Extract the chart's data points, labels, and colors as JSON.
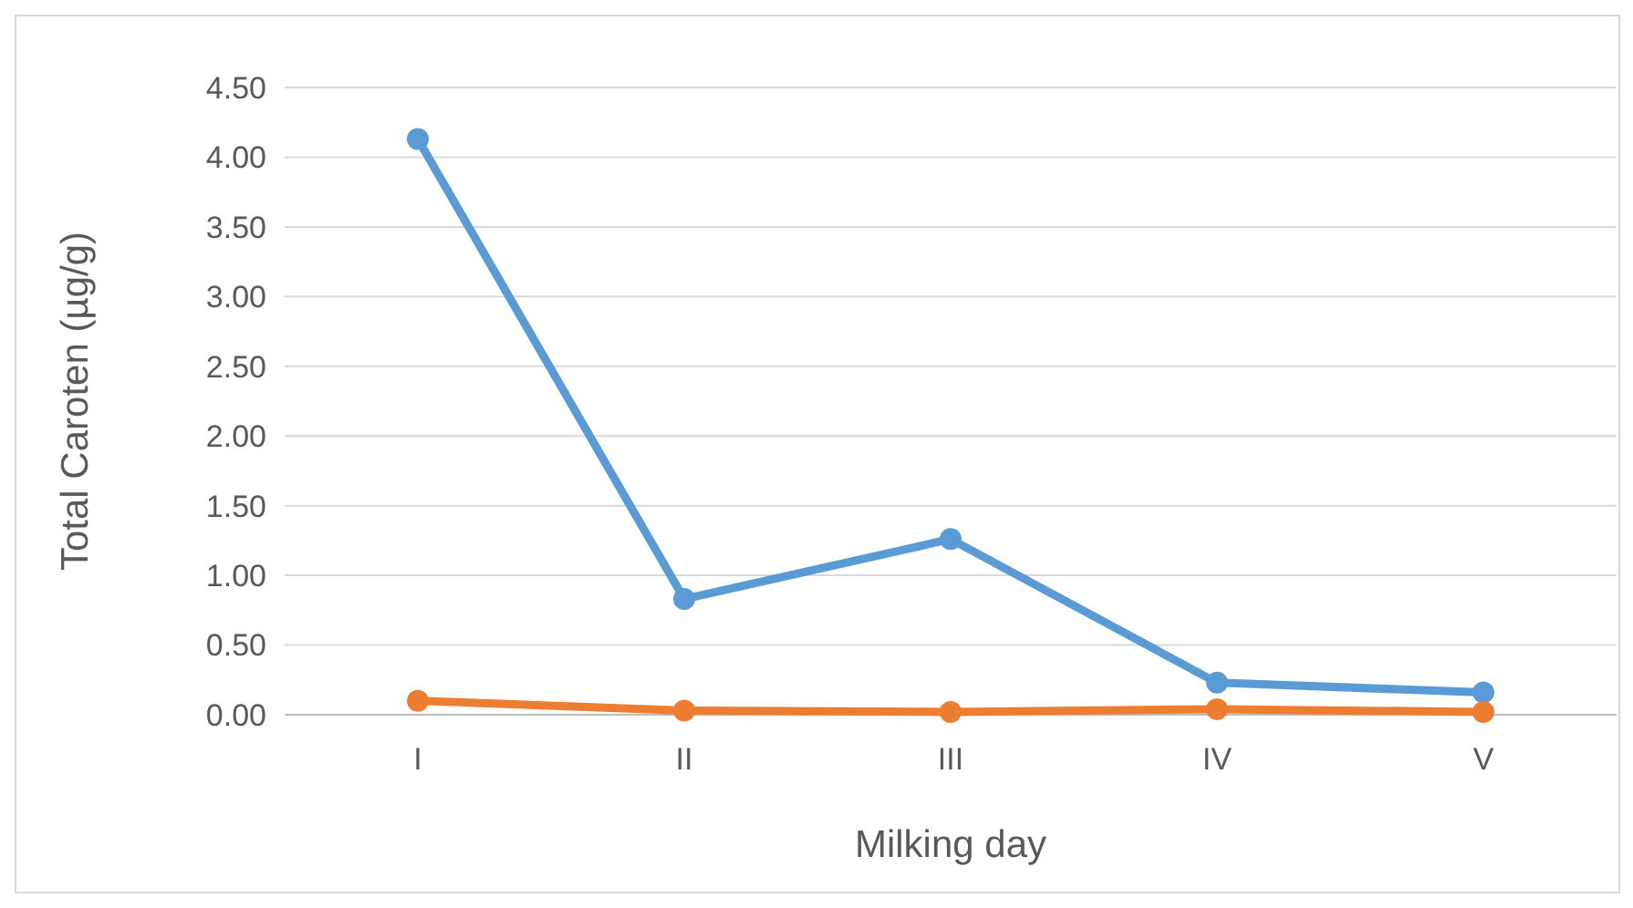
{
  "chart_data": {
    "type": "line",
    "xlabel": "Milking day",
    "ylabel": "Total Caroten (µg/g)",
    "categories": [
      "I",
      "II",
      "III",
      "IV",
      "V"
    ],
    "series": [
      {
        "color": "#5b9bd5",
        "values": [
          4.13,
          0.83,
          1.26,
          0.23,
          0.16
        ]
      },
      {
        "color": "#ed7d31",
        "values": [
          0.1,
          0.03,
          0.02,
          0.04,
          0.02
        ]
      }
    ],
    "ylim": [
      0,
      4.5
    ],
    "yticks": [
      {
        "value": 0,
        "label": "0.00"
      },
      {
        "value": 0.5,
        "label": "0.50"
      },
      {
        "value": 1,
        "label": "1.00"
      },
      {
        "value": 1.5,
        "label": "1.50"
      },
      {
        "value": 2,
        "label": "2.00"
      },
      {
        "value": 2.5,
        "label": "2.50"
      },
      {
        "value": 3,
        "label": "3.00"
      },
      {
        "value": 3.5,
        "label": "3.50"
      },
      {
        "value": 4,
        "label": "4.00"
      },
      {
        "value": 4.5,
        "label": "4.50"
      }
    ],
    "grid": "y",
    "marker": "circle",
    "line_style": "solid"
  }
}
